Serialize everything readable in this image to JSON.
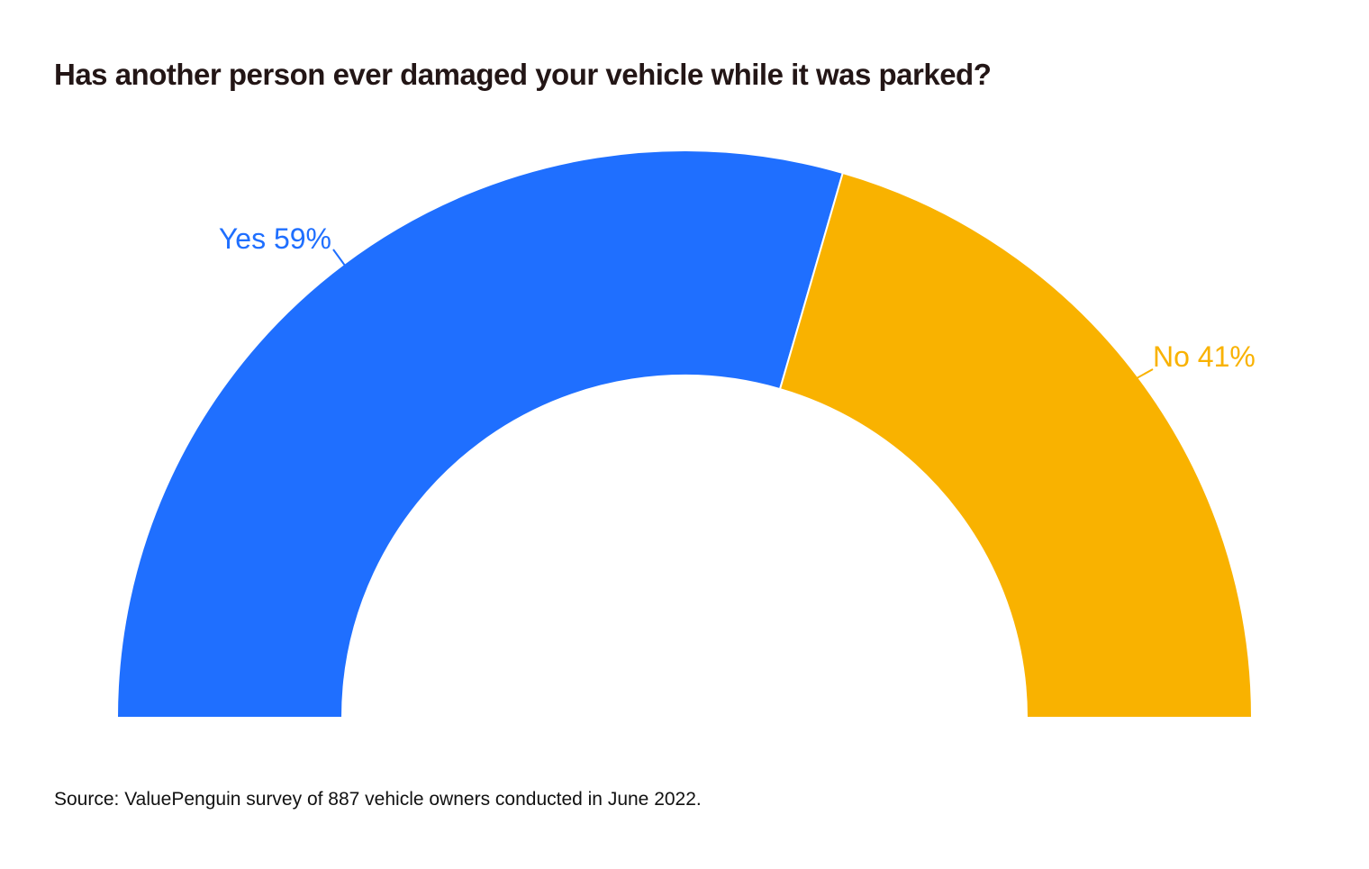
{
  "chart_data": {
    "type": "pie",
    "variant": "semicircle-donut",
    "title": "Has another person ever damaged your vehicle while it was parked?",
    "slices": [
      {
        "name": "Yes",
        "value": 59,
        "label": "Yes 59%",
        "color": "#1f6fff"
      },
      {
        "name": "No",
        "value": 41,
        "label": "No 41%",
        "color": "#f9b200"
      }
    ],
    "source": "Source: ValuePenguin survey of 887 vehicle owners conducted in June 2022."
  }
}
